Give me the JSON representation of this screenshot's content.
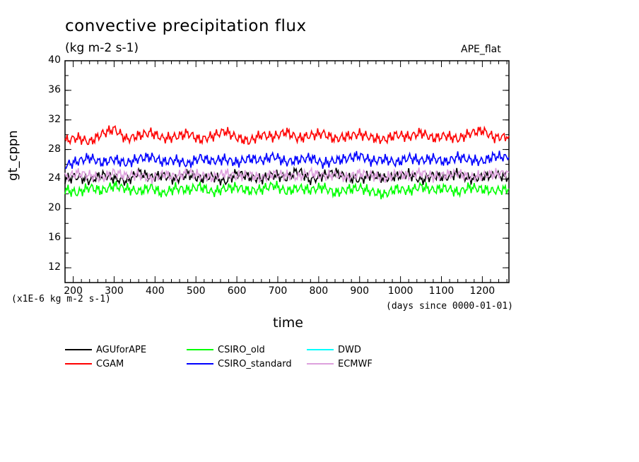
{
  "chart_data": {
    "type": "line",
    "title": "convective precipitation flux",
    "units": "(kg m-2 s-1)",
    "run_label": "APE_flat",
    "xlabel": "time",
    "ylabel": "gt_cppn",
    "y_multiplier_label": "(x1E-6 kg m-2 s-1)",
    "x_units_label": "(days since 0000-01-01)",
    "xlim": [
      180,
      1265
    ],
    "ylim": [
      10,
      40
    ],
    "x_ticks": [
      200,
      300,
      400,
      500,
      600,
      700,
      800,
      900,
      1000,
      1100,
      1200
    ],
    "y_ticks": [
      12,
      16,
      20,
      24,
      28,
      32,
      36,
      40
    ],
    "grid": false,
    "legend_position": "bottom",
    "series": [
      {
        "name": "AGUforAPE",
        "color": "#000000",
        "x": [
          180,
          210,
          240,
          270,
          300,
          330,
          360,
          390,
          420,
          450,
          480,
          510,
          540,
          570,
          600,
          630,
          660,
          690,
          720,
          750,
          780,
          810,
          840,
          870,
          900,
          930,
          960,
          990,
          1020,
          1050,
          1080,
          1110,
          1140,
          1170,
          1200,
          1230,
          1265
        ],
        "y": [
          24.0,
          24.3,
          23.8,
          24.6,
          24.1,
          23.7,
          24.9,
          24.2,
          24.5,
          23.9,
          24.7,
          24.0,
          24.4,
          23.6,
          24.8,
          24.3,
          24.0,
          24.6,
          24.1,
          25.2,
          23.8,
          24.5,
          24.9,
          24.2,
          23.9,
          24.6,
          24.1,
          24.4,
          24.7,
          23.8,
          24.5,
          24.2,
          24.8,
          24.0,
          24.3,
          24.6,
          24.2
        ]
      },
      {
        "name": "CGAM",
        "color": "#ff0000",
        "x": [
          180,
          210,
          240,
          270,
          300,
          330,
          360,
          390,
          420,
          450,
          480,
          510,
          540,
          570,
          600,
          630,
          660,
          690,
          720,
          750,
          780,
          810,
          840,
          870,
          900,
          930,
          960,
          990,
          1020,
          1050,
          1080,
          1110,
          1140,
          1170,
          1200,
          1230,
          1265
        ],
        "y": [
          29.2,
          29.6,
          29.0,
          30.1,
          30.8,
          29.4,
          29.9,
          30.3,
          29.5,
          29.7,
          30.2,
          29.3,
          29.8,
          30.5,
          29.6,
          29.1,
          30.0,
          29.7,
          30.4,
          29.5,
          29.9,
          30.2,
          29.4,
          29.8,
          30.1,
          29.6,
          29.3,
          30.0,
          29.7,
          30.3,
          29.5,
          29.9,
          29.4,
          30.2,
          30.6,
          29.6,
          29.8
        ]
      },
      {
        "name": "CSIRO_old",
        "color": "#00ff00",
        "x": [
          180,
          210,
          240,
          270,
          300,
          330,
          360,
          390,
          420,
          450,
          480,
          510,
          540,
          570,
          600,
          630,
          660,
          690,
          720,
          750,
          780,
          810,
          840,
          870,
          900,
          930,
          960,
          990,
          1020,
          1050,
          1080,
          1110,
          1140,
          1170,
          1200,
          1230,
          1265
        ],
        "y": [
          22.6,
          22.1,
          22.9,
          22.4,
          23.1,
          22.7,
          22.3,
          22.9,
          22.0,
          22.8,
          22.5,
          23.0,
          22.2,
          22.7,
          22.9,
          22.4,
          22.6,
          23.2,
          22.3,
          22.8,
          22.5,
          22.9,
          22.1,
          22.6,
          22.8,
          22.3,
          21.9,
          22.7,
          22.4,
          23.0,
          22.5,
          22.8,
          22.2,
          22.9,
          22.6,
          22.4,
          22.7
        ]
      },
      {
        "name": "CSIRO_standard",
        "color": "#0000ff",
        "x": [
          180,
          210,
          240,
          270,
          300,
          330,
          360,
          390,
          420,
          450,
          480,
          510,
          540,
          570,
          600,
          630,
          660,
          690,
          720,
          750,
          780,
          810,
          840,
          870,
          900,
          930,
          960,
          990,
          1020,
          1050,
          1080,
          1110,
          1140,
          1170,
          1200,
          1230,
          1265
        ],
        "y": [
          25.8,
          26.4,
          26.9,
          26.2,
          26.7,
          26.1,
          26.8,
          27.0,
          26.3,
          26.6,
          26.0,
          26.9,
          26.4,
          26.7,
          26.2,
          26.8,
          26.5,
          27.1,
          26.3,
          26.6,
          26.9,
          26.1,
          26.5,
          26.8,
          27.2,
          26.4,
          26.7,
          26.2,
          26.9,
          26.5,
          26.8,
          26.3,
          27.0,
          26.6,
          26.4,
          27.1,
          26.9
        ]
      },
      {
        "name": "DWD",
        "color": "#00ffff",
        "x": [],
        "y": []
      },
      {
        "name": "ECMWF",
        "color": "#dda0dd",
        "x": [
          180,
          210,
          240,
          270,
          300,
          330,
          360,
          390,
          420,
          450,
          480,
          510,
          540,
          570,
          600,
          630,
          660,
          690,
          720,
          750,
          780,
          810,
          840,
          870,
          900,
          930,
          960,
          990,
          1020,
          1050,
          1080,
          1110,
          1140,
          1170,
          1200,
          1230,
          1265
        ],
        "y": [
          24.2,
          24.8,
          24.5,
          24.1,
          24.9,
          24.4,
          24.6,
          24.0,
          24.7,
          24.3,
          24.9,
          24.5,
          24.2,
          24.8,
          24.4,
          24.6,
          24.1,
          24.7,
          24.5,
          24.3,
          24.9,
          24.4,
          24.6,
          24.2,
          24.8,
          24.5,
          24.1,
          24.7,
          24.4,
          24.9,
          24.3,
          24.6,
          24.8,
          24.2,
          24.5,
          24.7,
          24.9
        ]
      }
    ]
  }
}
